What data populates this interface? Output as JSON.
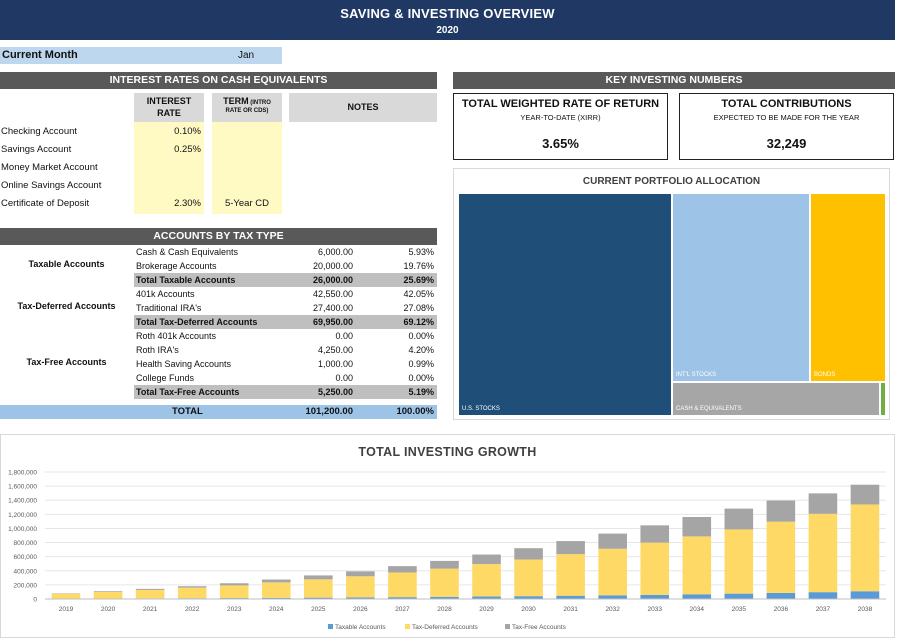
{
  "header": {
    "title": "SAVING & INVESTING OVERVIEW",
    "year": "2020"
  },
  "current_month": {
    "label": "Current Month",
    "value": "Jan"
  },
  "interest": {
    "title": "INTEREST RATES ON CASH EQUIVALENTS",
    "col_rate_1": "INTEREST",
    "col_rate_2": "RATE",
    "col_term_1": "TERM",
    "col_term_small": " (INTRO",
    "col_term_2": "RATE OR CDS)",
    "col_notes": "NOTES",
    "rows": [
      {
        "name": "Checking Account",
        "rate": "0.10%",
        "term": ""
      },
      {
        "name": "Savings Account",
        "rate": "0.25%",
        "term": ""
      },
      {
        "name": "Money Market Account",
        "rate": "",
        "term": ""
      },
      {
        "name": "Online Savings Account",
        "rate": "",
        "term": ""
      },
      {
        "name": "Certificate of Deposit",
        "rate": "2.30%",
        "term": "5-Year CD"
      }
    ]
  },
  "tax": {
    "title": "ACCOUNTS BY TAX TYPE",
    "groups": {
      "taxable": "Taxable Accounts",
      "deferred": "Tax-Deferred Accounts",
      "free": "Tax-Free Accounts"
    },
    "rows": [
      {
        "name": "Cash & Cash Equivalents",
        "amount": "6,000.00",
        "pct": "5.93%"
      },
      {
        "name": "Brokerage Accounts",
        "amount": "20,000.00",
        "pct": "19.76%"
      },
      {
        "name": "Total Taxable Accounts",
        "amount": "26,000.00",
        "pct": "25.69%"
      },
      {
        "name": "401k Accounts",
        "amount": "42,550.00",
        "pct": "42.05%"
      },
      {
        "name": "Traditional IRA's",
        "amount": "27,400.00",
        "pct": "27.08%"
      },
      {
        "name": "Total Tax-Deferred Accounts",
        "amount": "69,950.00",
        "pct": "69.12%"
      },
      {
        "name": "Roth 401k Accounts",
        "amount": "0.00",
        "pct": "0.00%"
      },
      {
        "name": "Roth IRA's",
        "amount": "4,250.00",
        "pct": "4.20%"
      },
      {
        "name": "Health Saving Accounts",
        "amount": "1,000.00",
        "pct": "0.99%"
      },
      {
        "name": "College Funds",
        "amount": "0.00",
        "pct": "0.00%"
      },
      {
        "name": "Total Tax-Free Accounts",
        "amount": "5,250.00",
        "pct": "5.19%"
      }
    ],
    "total": {
      "label": "TOTAL",
      "amount": "101,200.00",
      "pct": "100.00%"
    }
  },
  "key": {
    "title": "KEY INVESTING NUMBERS",
    "return": {
      "title": "TOTAL WEIGHTED RATE OF RETURN",
      "subtitle": "YEAR-TO-DATE (XIRR)",
      "value": "3.65%"
    },
    "contrib": {
      "title": "TOTAL CONTRIBUTIONS",
      "subtitle": "EXPECTED TO BE MADE FOR THE YEAR",
      "value": "32,249"
    }
  },
  "allocation": {
    "title": "CURRENT PORTFOLIO ALLOCATION",
    "labels": {
      "us": "U.S. STOCKS",
      "intl": "INT'L STOCKS",
      "bonds": "BONDS",
      "cash": "CASH & EQUIVALENTS"
    },
    "colors": {
      "us": "#1f4e79",
      "intl": "#9dc3e6",
      "bonds": "#ffc000",
      "cash": "#a6a6a6",
      "other": "#70ad47"
    }
  },
  "chart_data": {
    "type": "bar",
    "stacked": true,
    "title": "TOTAL INVESTING GROWTH",
    "categories": [
      "2019",
      "2020",
      "2021",
      "2022",
      "2023",
      "2024",
      "2025",
      "2026",
      "2027",
      "2028",
      "2029",
      "2030",
      "2031",
      "2032",
      "2033",
      "2034",
      "2035",
      "2036",
      "2037",
      "2038"
    ],
    "ylim": [
      0,
      1800000
    ],
    "yticks": [
      "0",
      "200,000",
      "400,000",
      "600,000",
      "800,000",
      "1,000,000",
      "1,200,000",
      "1,400,000",
      "1,600,000",
      "1,800,000"
    ],
    "series": [
      {
        "name": "Taxable Accounts",
        "color": "#5b9bd5",
        "values": [
          5000,
          7000,
          9000,
          11000,
          13000,
          16000,
          19000,
          22000,
          26000,
          30000,
          35000,
          40000,
          46000,
          52000,
          59000,
          67000,
          76000,
          86000,
          97000,
          110000
        ]
      },
      {
        "name": "Tax-Deferred Accounts",
        "color": "#ffd966",
        "values": [
          70000,
          95000,
          120000,
          150000,
          180000,
          220000,
          260000,
          300000,
          350000,
          400000,
          460000,
          520000,
          590000,
          660000,
          740000,
          820000,
          910000,
          1010000,
          1110000,
          1230000
        ]
      },
      {
        "name": "Tax-Free Accounts",
        "color": "#a5a5a5",
        "values": [
          5000,
          10000,
          15000,
          20000,
          30000,
          40000,
          55000,
          70000,
          90000,
          110000,
          135000,
          160000,
          185000,
          215000,
          245000,
          275000,
          295000,
          300000,
          290000,
          280000
        ]
      }
    ]
  }
}
